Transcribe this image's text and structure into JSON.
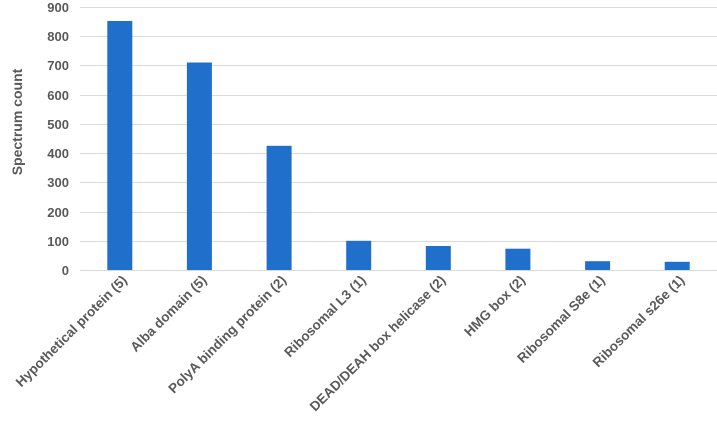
{
  "chart_data": {
    "type": "bar",
    "title": "",
    "xlabel": "",
    "ylabel": "Spectrum count",
    "ylim": [
      0,
      900
    ],
    "yticks": [
      0,
      100,
      200,
      300,
      400,
      500,
      600,
      700,
      800,
      900
    ],
    "categories": [
      "Hypothetical protein (5)",
      "Alba domain (5)",
      "PolyA binding protein (2)",
      "Ribosomal L3 (1)",
      "DEAD/DEAH box helicase (2)",
      "HMG box (2)",
      "Ribosomal S8e (1)",
      "Ribosomal s26e (1)"
    ],
    "values": [
      852,
      710,
      425,
      100,
      82,
      73,
      30,
      28
    ],
    "grid": true,
    "legend": "none",
    "colors": {
      "bar": "#1f6fcb",
      "grid": "#d9d9d9",
      "text": "#595959"
    }
  }
}
